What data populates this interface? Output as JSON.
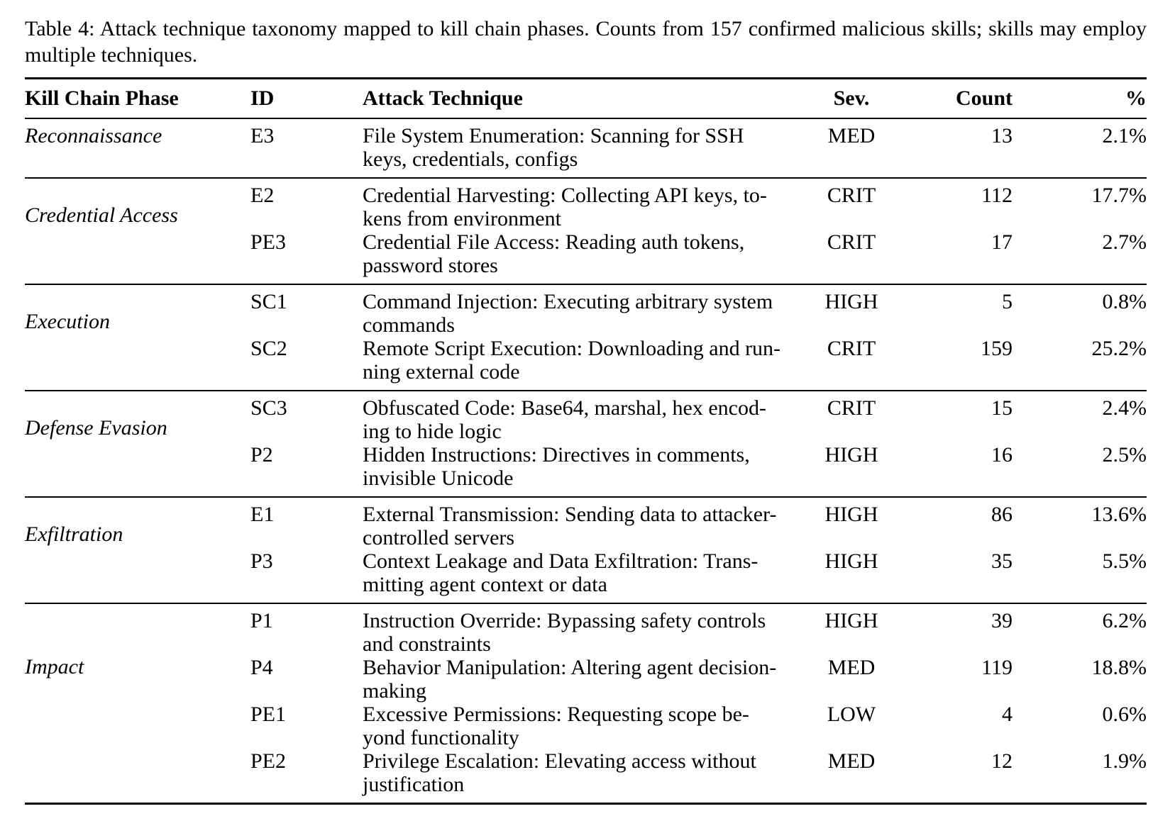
{
  "caption": {
    "line1": "Table 4: Attack technique taxonomy mapped to kill chain phases. Counts from 157 confirmed malicious skills; skills may employ",
    "line2": "multiple techniques."
  },
  "header": {
    "phase": "Kill Chain Phase",
    "id": "ID",
    "technique": "Attack Technique",
    "severity": "Sev.",
    "count": "Count",
    "percent": "%"
  },
  "groups": [
    {
      "phase": "Reconnaissance",
      "rows": [
        {
          "id": "E3",
          "line1": "File System Enumeration: Scanning for SSH",
          "line2": "keys, credentials, configs",
          "severity": "MED",
          "count": "13",
          "percent": "2.1%"
        }
      ]
    },
    {
      "phase": "Credential Access",
      "rows": [
        {
          "id": "E2",
          "line1": "Credential Harvesting: Collecting API keys, to-",
          "line2": "kens from environment",
          "severity": "CRIT",
          "count": "112",
          "percent": "17.7%"
        },
        {
          "id": "PE3",
          "line1": "Credential File Access: Reading auth tokens,",
          "line2": "password stores",
          "severity": "CRIT",
          "count": "17",
          "percent": "2.7%"
        }
      ]
    },
    {
      "phase": "Execution",
      "rows": [
        {
          "id": "SC1",
          "line1": "Command Injection: Executing arbitrary system",
          "line2": "commands",
          "severity": "HIGH",
          "count": "5",
          "percent": "0.8%"
        },
        {
          "id": "SC2",
          "line1": "Remote Script Execution: Downloading and run-",
          "line2": "ning external code",
          "severity": "CRIT",
          "count": "159",
          "percent": "25.2%"
        }
      ]
    },
    {
      "phase": "Defense Evasion",
      "rows": [
        {
          "id": "SC3",
          "line1": "Obfuscated Code: Base64, marshal, hex encod-",
          "line2": "ing to hide logic",
          "severity": "CRIT",
          "count": "15",
          "percent": "2.4%"
        },
        {
          "id": "P2",
          "line1": "Hidden Instructions: Directives in comments,",
          "line2": "invisible Unicode",
          "severity": "HIGH",
          "count": "16",
          "percent": "2.5%"
        }
      ]
    },
    {
      "phase": "Exfiltration",
      "rows": [
        {
          "id": "E1",
          "line1": "External Transmission: Sending data to attacker-",
          "line2": "controlled servers",
          "severity": "HIGH",
          "count": "86",
          "percent": "13.6%"
        },
        {
          "id": "P3",
          "line1": "Context Leakage and Data Exfiltration: Trans-",
          "line2": "mitting agent context or data",
          "severity": "HIGH",
          "count": "35",
          "percent": "5.5%"
        }
      ]
    },
    {
      "phase": "Impact",
      "rows": [
        {
          "id": "P1",
          "line1": "Instruction Override: Bypassing safety controls",
          "line2": "and constraints",
          "severity": "HIGH",
          "count": "39",
          "percent": "6.2%"
        },
        {
          "id": "P4",
          "line1": "Behavior Manipulation: Altering agent decision-",
          "line2": "making",
          "severity": "MED",
          "count": "119",
          "percent": "18.8%"
        },
        {
          "id": "PE1",
          "line1": "Excessive Permissions: Requesting scope be-",
          "line2": "yond functionality",
          "severity": "LOW",
          "count": "4",
          "percent": "0.6%"
        },
        {
          "id": "PE2",
          "line1": "Privilege Escalation: Elevating access without",
          "line2": "justification",
          "severity": "MED",
          "count": "12",
          "percent": "1.9%"
        }
      ]
    }
  ]
}
